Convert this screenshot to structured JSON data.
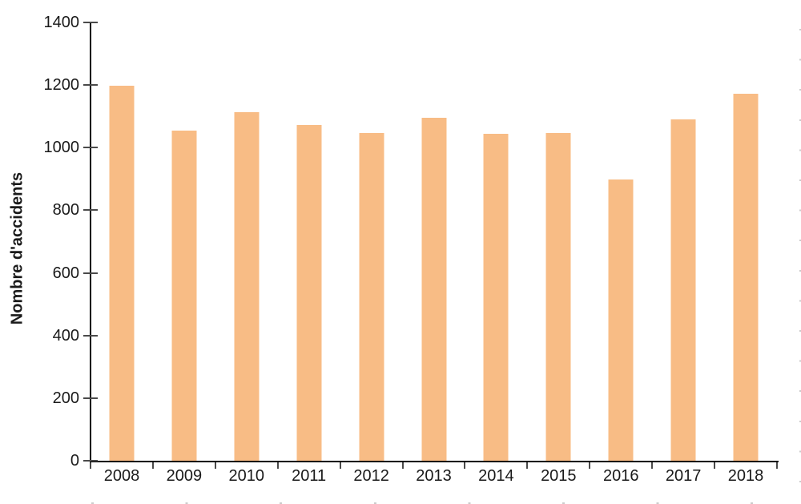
{
  "chart_data": {
    "type": "bar",
    "title": "",
    "categories": [
      "2008",
      "2009",
      "2010",
      "2011",
      "2012",
      "2013",
      "2014",
      "2015",
      "2016",
      "2017",
      "2018"
    ],
    "values": [
      1197,
      1055,
      1114,
      1073,
      1048,
      1096,
      1045,
      1046,
      898,
      1091,
      1172
    ],
    "xlabel": "",
    "ylabel": "Nombre d'accidents",
    "ylim": [
      0,
      1400
    ],
    "ytick_step": 200,
    "yticks": [
      0,
      200,
      400,
      600,
      800,
      1000,
      1200,
      1400
    ],
    "grid": false,
    "legend": "none",
    "bar_color": "#F8BC85",
    "axis_color": "#000000",
    "tick_color": "#4A4A4A",
    "text_color": "#1A1A1A"
  }
}
